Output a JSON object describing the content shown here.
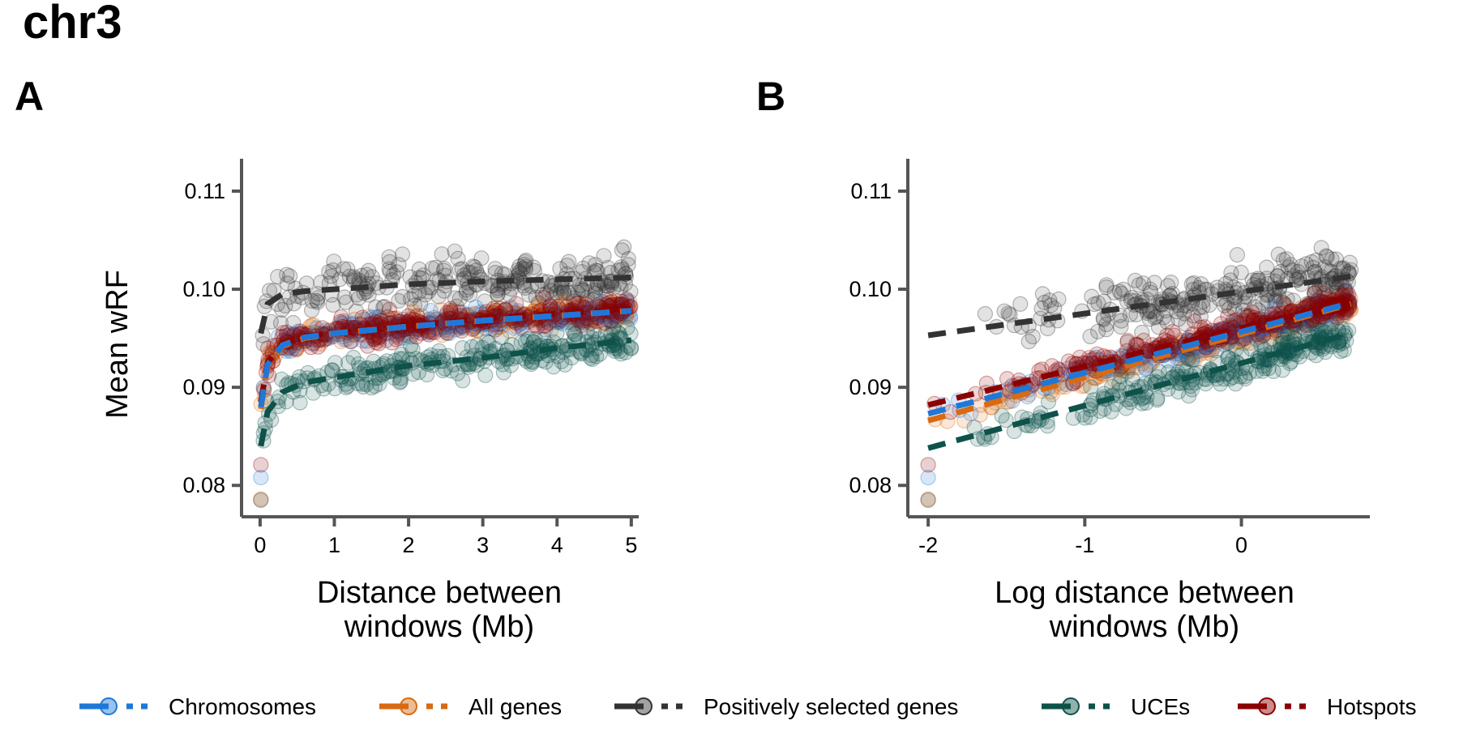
{
  "title": "chr3",
  "colors": {
    "Chromosomes": "#1f78d8",
    "All genes": "#d86a12",
    "Positively selected genes": "#333333",
    "UCEs": "#0e524a",
    "Hotspots": "#8b0000",
    "axis": "#555555"
  },
  "legend": [
    {
      "name": "Chromosomes",
      "color_key": "Chromosomes"
    },
    {
      "name": "All genes",
      "color_key": "All genes"
    },
    {
      "name": "Positively selected genes",
      "color_key": "Positively selected genes"
    },
    {
      "name": "UCEs",
      "color_key": "UCEs"
    },
    {
      "name": "Hotspots",
      "color_key": "Hotspots"
    }
  ],
  "chart_data": [
    {
      "panel": "A",
      "type": "scatter",
      "xlabel": "Distance between windows (Mb)",
      "xlabel_lines": [
        "Distance between",
        "windows (Mb)"
      ],
      "ylabel": "Mean wRF",
      "xlim": [
        -0.25,
        5.1
      ],
      "ylim": [
        0.0768,
        0.1133
      ],
      "xticks": [
        0,
        1,
        2,
        3,
        4,
        5
      ],
      "xtick_labels": [
        "0",
        "1",
        "2",
        "3",
        "4",
        "5"
      ],
      "yticks": [
        0.08,
        0.09,
        0.1,
        0.11
      ],
      "ytick_labels": [
        "0.08",
        "0.09",
        "0.10",
        "0.11"
      ],
      "grid": false,
      "legend_position": "bottom",
      "trend_lines": [
        {
          "name": "Positively selected genes",
          "x": [
            0.01,
            0.1,
            0.3,
            0.6,
            1,
            2,
            3,
            4,
            5
          ],
          "y": [
            0.0955,
            0.0985,
            0.0995,
            0.0998,
            0.1,
            0.1005,
            0.1008,
            0.101,
            0.1012
          ]
        },
        {
          "name": "Hotspots",
          "x": [
            0.01,
            0.1,
            0.3,
            0.6,
            1,
            2,
            3,
            4,
            5
          ],
          "y": [
            0.0885,
            0.0925,
            0.0945,
            0.0952,
            0.0955,
            0.0963,
            0.097,
            0.0975,
            0.098
          ]
        },
        {
          "name": "All genes",
          "x": [
            0.01,
            0.1,
            0.3,
            0.6,
            1,
            2,
            3,
            4,
            5
          ],
          "y": [
            0.0878,
            0.0922,
            0.0942,
            0.095,
            0.0955,
            0.0962,
            0.0968,
            0.0973,
            0.0978
          ]
        },
        {
          "name": "Chromosomes",
          "x": [
            0.01,
            0.1,
            0.3,
            0.6,
            1,
            2,
            3,
            4,
            5
          ],
          "y": [
            0.088,
            0.0923,
            0.0943,
            0.0951,
            0.0955,
            0.0962,
            0.0968,
            0.0973,
            0.0978
          ]
        },
        {
          "name": "UCEs",
          "x": [
            0.01,
            0.1,
            0.3,
            0.6,
            1,
            2,
            3,
            4,
            5
          ],
          "y": [
            0.084,
            0.0875,
            0.0895,
            0.0905,
            0.091,
            0.0922,
            0.093,
            0.094,
            0.0948
          ]
        }
      ]
    },
    {
      "panel": "B",
      "type": "scatter",
      "xlabel": "Log distance between windows (Mb)",
      "xlabel_lines": [
        "Log distance between",
        "windows (Mb)"
      ],
      "ylabel": "Mean wRF",
      "xlim": [
        -2.13,
        0.82
      ],
      "ylim": [
        0.0768,
        0.1133
      ],
      "xticks": [
        -2,
        -1,
        0
      ],
      "xtick_labels": [
        "-2",
        "-1",
        "0"
      ],
      "yticks": [
        0.08,
        0.09,
        0.1,
        0.11
      ],
      "ytick_labels": [
        "0.08",
        "0.09",
        "0.10",
        "0.11"
      ],
      "grid": false,
      "legend_position": "bottom",
      "trend_lines": [
        {
          "name": "Positively selected genes",
          "x": [
            -2,
            0.7
          ],
          "y": [
            0.0953,
            0.1013
          ]
        },
        {
          "name": "Hotspots",
          "x": [
            -2,
            0.7
          ],
          "y": [
            0.0882,
            0.0988
          ]
        },
        {
          "name": "All genes",
          "x": [
            -2,
            0.7
          ],
          "y": [
            0.0866,
            0.0985
          ]
        },
        {
          "name": "Chromosomes",
          "x": [
            -2,
            0.7
          ],
          "y": [
            0.0873,
            0.0986
          ]
        },
        {
          "name": "UCEs",
          "x": [
            -2,
            0.7
          ],
          "y": [
            0.0838,
            0.0955
          ]
        }
      ]
    }
  ]
}
